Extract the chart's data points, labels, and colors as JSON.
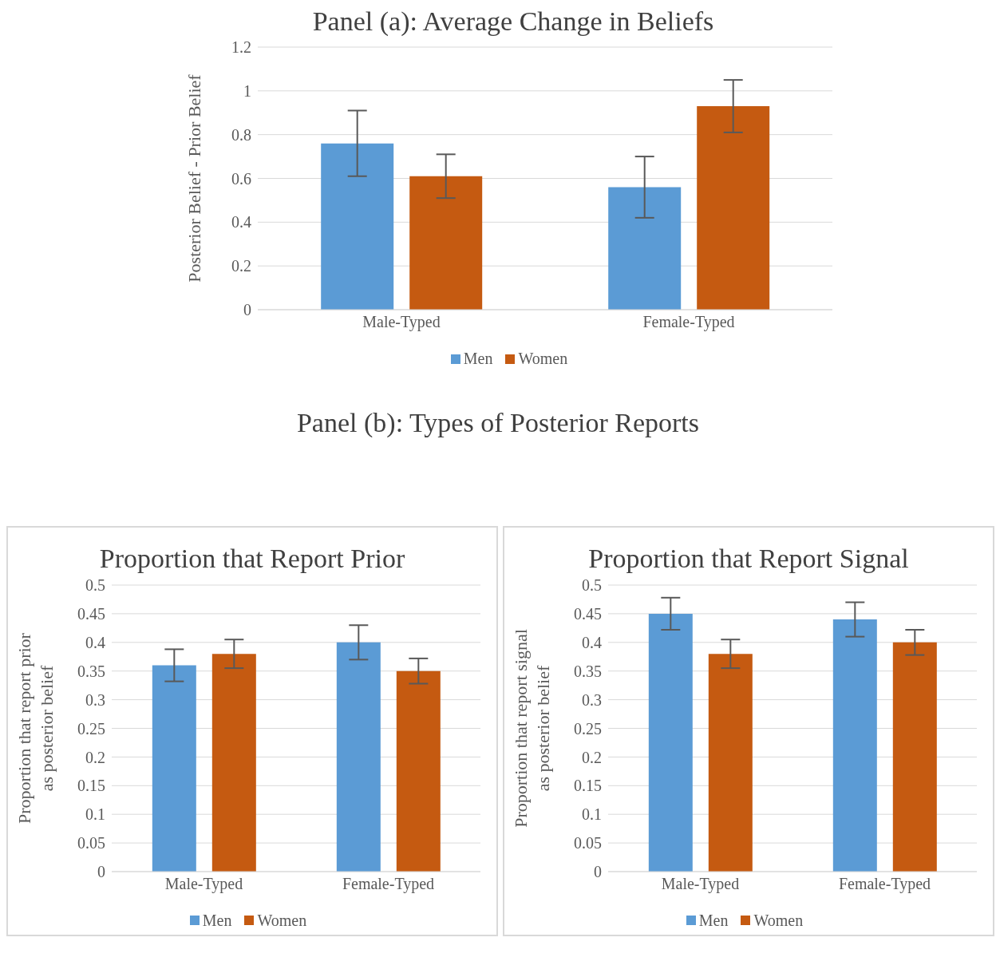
{
  "chart_data": [
    {
      "type": "bar",
      "title": "Panel (a): Average Change in Beliefs",
      "ylabel": "Posterior Belief - Prior Belief",
      "categories": [
        "Male-Typed",
        "Female-Typed"
      ],
      "series": [
        {
          "name": "Men",
          "color": "#5b9bd5",
          "values": [
            0.76,
            0.56
          ],
          "errors": [
            0.15,
            0.14
          ]
        },
        {
          "name": "Women",
          "color": "#c55a11",
          "values": [
            0.61,
            0.93
          ],
          "errors": [
            0.1,
            0.12
          ]
        }
      ],
      "ylim": [
        0,
        1.2
      ],
      "yticks": [
        0,
        0.2,
        0.4,
        0.6,
        0.8,
        1,
        1.2
      ],
      "grid": "y",
      "legend": "bottom"
    },
    {
      "type": "bar",
      "title": "Proportion that Report Prior",
      "ylabel": "Proportion that report prior as posterior belief",
      "annotations": [
        "Panel (b): Types of Posterior Reports"
      ],
      "categories": [
        "Male-Typed",
        "Female-Typed"
      ],
      "series": [
        {
          "name": "Men",
          "color": "#5b9bd5",
          "values": [
            0.36,
            0.4
          ],
          "errors": [
            0.028,
            0.03
          ]
        },
        {
          "name": "Women",
          "color": "#c55a11",
          "values": [
            0.38,
            0.35
          ],
          "errors": [
            0.025,
            0.022
          ]
        }
      ],
      "ylim": [
        0,
        0.5
      ],
      "yticks": [
        0,
        0.05,
        0.1,
        0.15,
        0.2,
        0.25,
        0.3,
        0.35,
        0.4,
        0.45,
        0.5
      ],
      "grid": "y",
      "legend": "bottom"
    },
    {
      "type": "bar",
      "title": "Proportion that Report Signal",
      "ylabel": "Proportion that report signal as posterior belief",
      "categories": [
        "Male-Typed",
        "Female-Typed"
      ],
      "series": [
        {
          "name": "Men",
          "color": "#5b9bd5",
          "values": [
            0.45,
            0.44
          ],
          "errors": [
            0.028,
            0.03
          ]
        },
        {
          "name": "Women",
          "color": "#c55a11",
          "values": [
            0.38,
            0.4
          ],
          "errors": [
            0.025,
            0.022
          ]
        }
      ],
      "ylim": [
        0,
        0.5
      ],
      "yticks": [
        0,
        0.05,
        0.1,
        0.15,
        0.2,
        0.25,
        0.3,
        0.35,
        0.4,
        0.45,
        0.5
      ],
      "grid": "y",
      "legend": "bottom"
    }
  ]
}
